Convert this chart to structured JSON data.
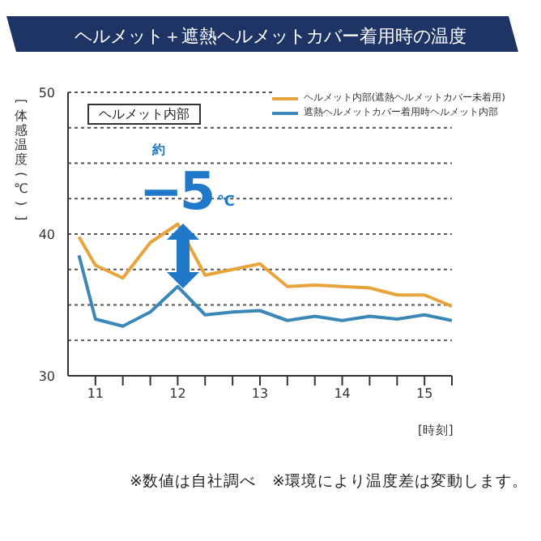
{
  "chart_data": {
    "type": "line",
    "title": "ヘルメット＋遮熱ヘルメットカバー着用時の温度",
    "xlabel": "[時刻]",
    "ylabel": "[体感温度(℃)]",
    "x": [
      10.8,
      11,
      11.333,
      11.667,
      12,
      12.333,
      12.667,
      13,
      13.333,
      13.667,
      14,
      14.333,
      14.667,
      15,
      15.333
    ],
    "series": [
      {
        "name": "ヘルメット内部(遮熱ヘルメットカバー未着用)",
        "color": "#e8a33a",
        "values": [
          39.8,
          37.8,
          36.9,
          39.4,
          40.7,
          37.1,
          37.5,
          37.9,
          36.3,
          36.4,
          36.3,
          36.2,
          35.7,
          35.7,
          34.9
        ]
      },
      {
        "name": "遮熱ヘルメットカバー着用時ヘルメット内部",
        "color": "#3a87b8",
        "values": [
          38.5,
          34.0,
          33.5,
          34.5,
          36.3,
          34.3,
          34.5,
          34.6,
          33.9,
          34.2,
          33.9,
          34.2,
          34.0,
          34.3,
          33.9
        ]
      }
    ],
    "xlim": [
      10.667,
      15.333
    ],
    "xticks": [
      11,
      {
        "value": 11.333,
        "label": null
      },
      {
        "value": 11.667,
        "label": null
      },
      12,
      {
        "value": 12.333,
        "label": null
      },
      {
        "value": 12.667,
        "label": null
      },
      13,
      {
        "value": 13.333,
        "label": null
      },
      {
        "value": 13.667,
        "label": null
      },
      14,
      {
        "value": 14.333,
        "label": null
      },
      {
        "value": 14.667,
        "label": null
      },
      15,
      {
        "value": 15.333,
        "label": null
      }
    ],
    "ylim": [
      30,
      50
    ],
    "yticks": [
      30,
      {
        "value": 32.5,
        "label": null
      },
      {
        "value": 35,
        "label": null
      },
      {
        "value": 37.5,
        "label": null
      },
      40,
      {
        "value": 42.5,
        "label": null
      },
      {
        "value": 45,
        "label": null
      },
      {
        "value": 47.5,
        "label": null
      },
      50
    ],
    "grid": "y",
    "legend": "top right",
    "marker": "none",
    "line_style": "solid",
    "annotations": [
      "ヘルメット内部",
      "約",
      "−5",
      "℃",
      "※数値は自社調べ　※環境により温度差は変動します。"
    ]
  }
}
